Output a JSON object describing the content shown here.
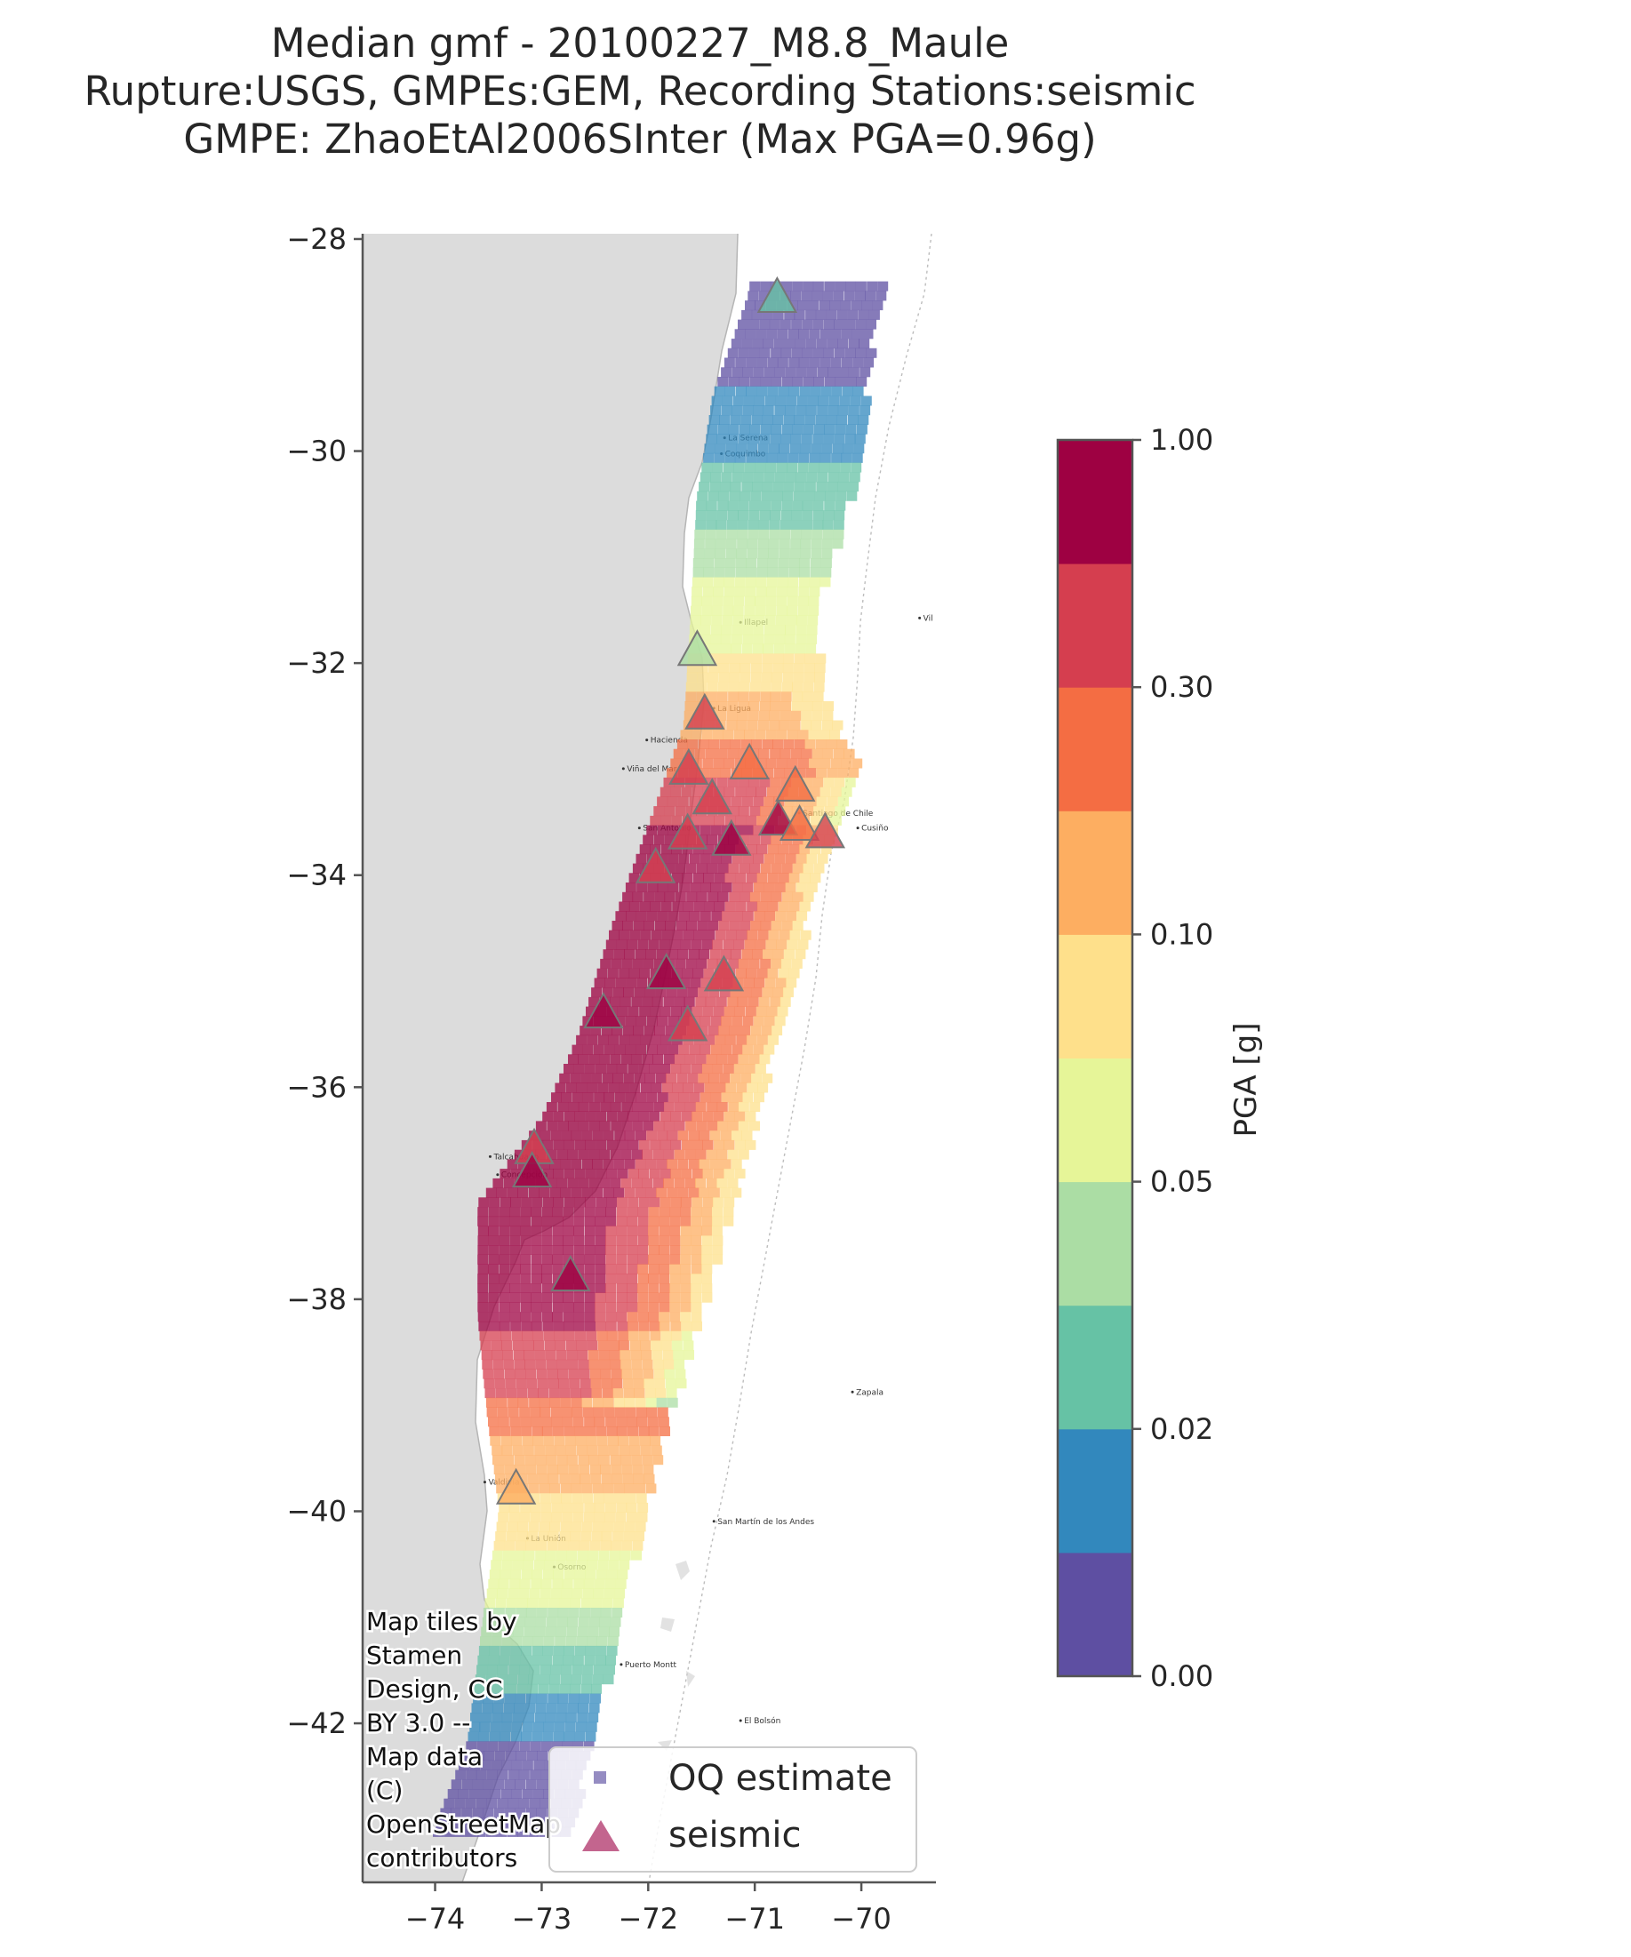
{
  "title": {
    "line1": "Median gmf - 20100227_M8.8_Maule",
    "line2": "Rupture:USGS, GMPEs:GEM, Recording Stations:seismic",
    "line3": "GMPE: ZhaoEtAl2006SInter (Max PGA=0.96g)"
  },
  "map": {
    "x_ticks": [
      "−74",
      "−73",
      "−72",
      "−71",
      "−70"
    ],
    "y_ticks": [
      "−28",
      "−30",
      "−32",
      "−34",
      "−36",
      "−38",
      "−40",
      "−42"
    ],
    "lon_range": [
      -74.68,
      -69.3
    ],
    "lat_range": [
      -43.5,
      -27.95
    ],
    "city_labels": [
      "La Serena",
      "Coquimbo",
      "Illapel",
      "La Ligua",
      "Hacienda",
      "Viña del Mar",
      "San Antonio",
      "Santiago de Chile",
      "Cusiño",
      "Talcahuano",
      "Concepción",
      "Valdivia",
      "La Unión",
      "Osorno",
      "Puerto Montt",
      "San Martín de los Andes",
      "El Bolsón",
      "Zapala",
      "Vil"
    ],
    "attribution": [
      "Map tiles by",
      "Stamen",
      "Design, CC",
      "BY 3.0 --",
      "Map data",
      "(C)",
      "OpenStreetMap",
      "contributors"
    ]
  },
  "legend": {
    "items": [
      {
        "label": "OQ estimate",
        "marker": "square",
        "color": "#7b6fb3"
      },
      {
        "label": "seismic",
        "marker": "triangle",
        "color": "#b94a7a"
      }
    ]
  },
  "colorbar": {
    "label": "PGA [g]",
    "tick_labels": [
      "0.00",
      "0.02",
      "0.05",
      "0.10",
      "0.30",
      "1.00"
    ],
    "bins": [
      "#5e4fa2",
      "#3288bd",
      "#66c2a5",
      "#abdda4",
      "#e6f598",
      "#fee08b",
      "#fdae61",
      "#f46d43",
      "#d53e4f",
      "#9e0142"
    ]
  },
  "chart_data": {
    "type": "map",
    "title": "Median gmf - 20100227_M8.8_Maule",
    "xlim": [
      -74.68,
      -69.3
    ],
    "ylim": [
      -43.5,
      -27.95
    ],
    "colorbar_ticks": [
      0.0,
      0.02,
      0.05,
      0.1,
      0.3,
      1.0
    ],
    "max_pga_g": 0.96,
    "stations": [
      {
        "lon": -70.79,
        "lat": -28.57,
        "pga_bin": 2
      },
      {
        "lon": -71.54,
        "lat": -31.9,
        "pga_bin": 3
      },
      {
        "lon": -71.47,
        "lat": -32.5,
        "pga_bin": 8
      },
      {
        "lon": -71.62,
        "lat": -33.02,
        "pga_bin": 8
      },
      {
        "lon": -71.05,
        "lat": -32.97,
        "pga_bin": 7
      },
      {
        "lon": -71.4,
        "lat": -33.3,
        "pga_bin": 8
      },
      {
        "lon": -70.62,
        "lat": -33.18,
        "pga_bin": 7
      },
      {
        "lon": -70.78,
        "lat": -33.5,
        "pga_bin": 9
      },
      {
        "lon": -70.58,
        "lat": -33.55,
        "pga_bin": 7
      },
      {
        "lon": -70.34,
        "lat": -33.62,
        "pga_bin": 8
      },
      {
        "lon": -71.63,
        "lat": -33.63,
        "pga_bin": 8
      },
      {
        "lon": -71.22,
        "lat": -33.69,
        "pga_bin": 9
      },
      {
        "lon": -71.93,
        "lat": -33.95,
        "pga_bin": 8
      },
      {
        "lon": -71.83,
        "lat": -34.95,
        "pga_bin": 9
      },
      {
        "lon": -71.29,
        "lat": -34.97,
        "pga_bin": 8
      },
      {
        "lon": -72.42,
        "lat": -35.32,
        "pga_bin": 9
      },
      {
        "lon": -71.63,
        "lat": -35.44,
        "pga_bin": 8
      },
      {
        "lon": -73.07,
        "lat": -36.6,
        "pga_bin": 8
      },
      {
        "lon": -73.09,
        "lat": -36.82,
        "pga_bin": 9
      },
      {
        "lon": -72.73,
        "lat": -37.8,
        "pga_bin": 9
      },
      {
        "lon": -73.24,
        "lat": -39.81,
        "pga_bin": 6
      }
    ]
  }
}
